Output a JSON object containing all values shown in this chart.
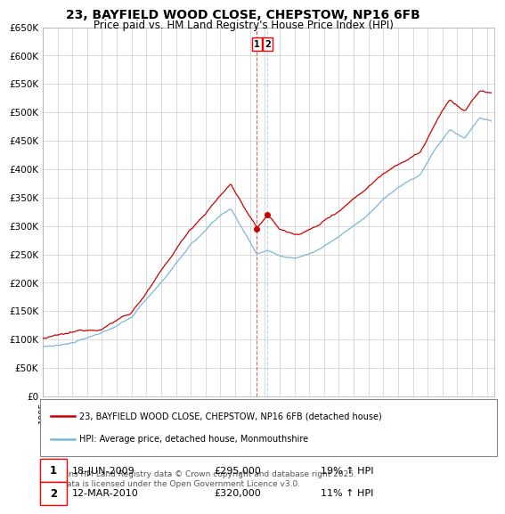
{
  "title": "23, BAYFIELD WOOD CLOSE, CHEPSTOW, NP16 6FB",
  "subtitle": "Price paid vs. HM Land Registry's House Price Index (HPI)",
  "ylabel_ticks": [
    "£0",
    "£50K",
    "£100K",
    "£150K",
    "£200K",
    "£250K",
    "£300K",
    "£350K",
    "£400K",
    "£450K",
    "£500K",
    "£550K",
    "£600K",
    "£650K"
  ],
  "ytick_values": [
    0,
    50000,
    100000,
    150000,
    200000,
    250000,
    300000,
    350000,
    400000,
    450000,
    500000,
    550000,
    600000,
    650000
  ],
  "ylim": [
    0,
    650000
  ],
  "xlim": [
    1995,
    2025.5
  ],
  "sale1_year": 2009.46,
  "sale1_price": 295000,
  "sale2_year": 2010.19,
  "sale2_price": 320000,
  "sale1_date": "18-JUN-2009",
  "sale1_hpi": "19% ↑ HPI",
  "sale2_date": "12-MAR-2010",
  "sale2_hpi": "11% ↑ HPI",
  "line1_color": "#cc0000",
  "line2_color": "#7ab8d9",
  "grid_color": "#cccccc",
  "background_color": "#ffffff",
  "legend1_label": "23, BAYFIELD WOOD CLOSE, CHEPSTOW, NP16 6FB (detached house)",
  "legend2_label": "HPI: Average price, detached house, Monmouthshire",
  "footnote": "Contains HM Land Registry data © Crown copyright and database right 2025.\nThis data is licensed under the Open Government Licence v3.0."
}
